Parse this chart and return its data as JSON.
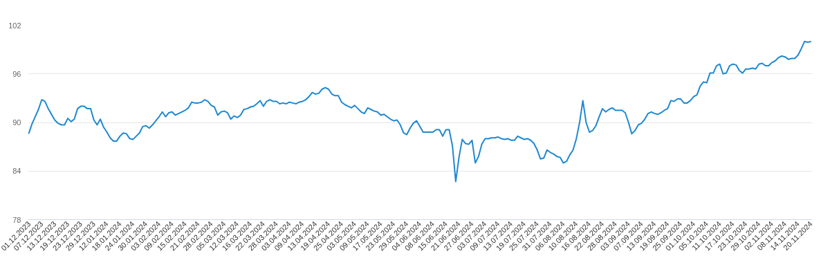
{
  "chart_data": {
    "type": "line",
    "categories": [
      "01.12.2023",
      null,
      null,
      null,
      "07.12.2023",
      null,
      null,
      null,
      "13.12.2023",
      null,
      null,
      null,
      "19.12.2023",
      null,
      null,
      null,
      "23.12.2023",
      null,
      null,
      null,
      "29.12.2023",
      null,
      null,
      null,
      "12.01.2024",
      null,
      null,
      null,
      "18.01.2024",
      null,
      null,
      null,
      "24.01.2024",
      null,
      null,
      null,
      "30.01.2024",
      null,
      null,
      null,
      "03.02.2024",
      null,
      null,
      null,
      "09.02.2024",
      null,
      null,
      null,
      "15.02.2024",
      null,
      null,
      null,
      "21.02.2024",
      null,
      null,
      null,
      "28.02.2024",
      null,
      null,
      null,
      "05.03.2024",
      null,
      null,
      null,
      "12.03.2024",
      null,
      null,
      null,
      "16.03.2024",
      null,
      null,
      null,
      "22.03.2024",
      null,
      null,
      null,
      "28.03.2024",
      null,
      null,
      null,
      "03.04.2024",
      null,
      null,
      null,
      "09.04.2024",
      null,
      null,
      null,
      "13.04.2024",
      null,
      null,
      null,
      "19.04.2024",
      null,
      null,
      null,
      "25.04.2024",
      null,
      null,
      null,
      "03.05.2024",
      null,
      null,
      null,
      "09.05.2024",
      null,
      null,
      null,
      "17.05.2024",
      null,
      null,
      null,
      "23.05.2024",
      null,
      null,
      null,
      "29.05.2024",
      null,
      null,
      null,
      "04.06.2024",
      null,
      null,
      null,
      "08.06.2024",
      null,
      null,
      null,
      "15.06.2024",
      null,
      null,
      null,
      "21.06.2024",
      null,
      null,
      null,
      "27.06.2024",
      null,
      null,
      null,
      "03.07.2024",
      null,
      null,
      null,
      "09.07.2024",
      null,
      null,
      null,
      "13.07.2024",
      null,
      null,
      null,
      "19.07.2024",
      null,
      null,
      null,
      "25.07.2024",
      null,
      null,
      null,
      "31.07.2024",
      null,
      null,
      null,
      "06.08.2024",
      null,
      null,
      null,
      "10.08.2024",
      null,
      null,
      null,
      "16.08.2024",
      null,
      null,
      null,
      "22.08.2024",
      null,
      null,
      null,
      "28.08.2024",
      null,
      null,
      null,
      "03.09.2024",
      null,
      null,
      null,
      "07.09.2024",
      null,
      null,
      null,
      "13.09.2024",
      null,
      null,
      null,
      "19.09.2024",
      null,
      null,
      null,
      "25.09.2024",
      null,
      null,
      null,
      "01.10.2024",
      null,
      null,
      null,
      "05.10.2024",
      null,
      null,
      null,
      "11.10.2024",
      null,
      null,
      null,
      "17.10.2024",
      null,
      null,
      null,
      "23.10.2024",
      null,
      null,
      null,
      "29.10.2024",
      null,
      null,
      null,
      "02.11.2024",
      null,
      null,
      null,
      "08.11.2024",
      null,
      null,
      null,
      "14.11.2024",
      null,
      null,
      null,
      "20.11.2024"
    ],
    "series": [
      {
        "color": "#1f88d1",
        "values": [
          88.6,
          89.8,
          90.7,
          91.6,
          92.8,
          92.6,
          91.7,
          91.0,
          90.3,
          89.9,
          89.7,
          89.7,
          90.5,
          90.1,
          90.4,
          91.7,
          92.0,
          92.0,
          91.7,
          91.7,
          90.3,
          89.7,
          90.4,
          89.4,
          88.8,
          88.1,
          87.7,
          87.7,
          88.3,
          88.7,
          88.6,
          88.0,
          87.9,
          88.3,
          88.7,
          89.5,
          89.6,
          89.3,
          89.7,
          90.2,
          90.7,
          91.3,
          90.7,
          91.2,
          91.3,
          90.9,
          91.1,
          91.3,
          91.5,
          91.8,
          92.5,
          92.4,
          92.4,
          92.5,
          92.8,
          92.6,
          92.1,
          91.9,
          90.9,
          91.3,
          91.4,
          91.2,
          90.4,
          90.8,
          90.6,
          90.9,
          91.6,
          91.7,
          91.9,
          92.0,
          92.3,
          92.7,
          92.0,
          92.6,
          92.8,
          92.6,
          92.6,
          92.3,
          92.4,
          92.3,
          92.5,
          92.4,
          92.3,
          92.5,
          92.6,
          92.8,
          93.2,
          93.7,
          93.5,
          93.6,
          94.1,
          94.3,
          94.1,
          93.5,
          93.3,
          93.3,
          92.5,
          92.2,
          92.0,
          91.8,
          92.1,
          91.7,
          91.3,
          91.1,
          91.8,
          91.6,
          91.4,
          91.3,
          90.9,
          91.0,
          90.7,
          90.4,
          90.2,
          90.3,
          89.7,
          88.7,
          88.5,
          89.3,
          89.9,
          90.2,
          89.5,
          88.8,
          88.8,
          88.8,
          88.8,
          89.1,
          89.1,
          88.3,
          89.1,
          89.1,
          87.1,
          82.7,
          85.7,
          87.9,
          87.4,
          87.3,
          87.8,
          85.0,
          85.8,
          87.3,
          88.0,
          88.0,
          88.1,
          88.1,
          88.2,
          88.0,
          87.9,
          88.0,
          87.8,
          87.8,
          88.3,
          88.1,
          87.9,
          88.0,
          87.8,
          87.4,
          86.6,
          85.5,
          85.6,
          86.6,
          86.3,
          86.1,
          85.8,
          85.7,
          85.0,
          85.2,
          86.0,
          86.6,
          88.0,
          90.0,
          92.7,
          90.0,
          88.8,
          89.0,
          89.6,
          90.7,
          91.7,
          91.3,
          91.6,
          91.8,
          91.5,
          91.5,
          91.5,
          91.2,
          90.0,
          88.6,
          89.0,
          89.7,
          89.9,
          90.4,
          91.1,
          91.3,
          91.1,
          91.0,
          91.2,
          91.5,
          91.7,
          92.7,
          92.6,
          92.9,
          92.9,
          92.4,
          92.4,
          92.7,
          93.2,
          93.4,
          94.5,
          95.0,
          94.9,
          96.1,
          96.1,
          97.0,
          97.2,
          96.0,
          96.1,
          97.0,
          97.2,
          97.1,
          96.4,
          96.1,
          96.6,
          96.6,
          96.7,
          96.6,
          97.2,
          97.3,
          97.0,
          97.0,
          97.4,
          97.6,
          98.0,
          98.2,
          98.1,
          97.8,
          97.9,
          97.9,
          98.3,
          99.1,
          100.0,
          99.9,
          100.0
        ]
      }
    ],
    "ylim": [
      78,
      102
    ],
    "yticks": [
      78,
      84,
      90,
      96,
      102
    ],
    "grid": "y",
    "line_style": "solid"
  }
}
